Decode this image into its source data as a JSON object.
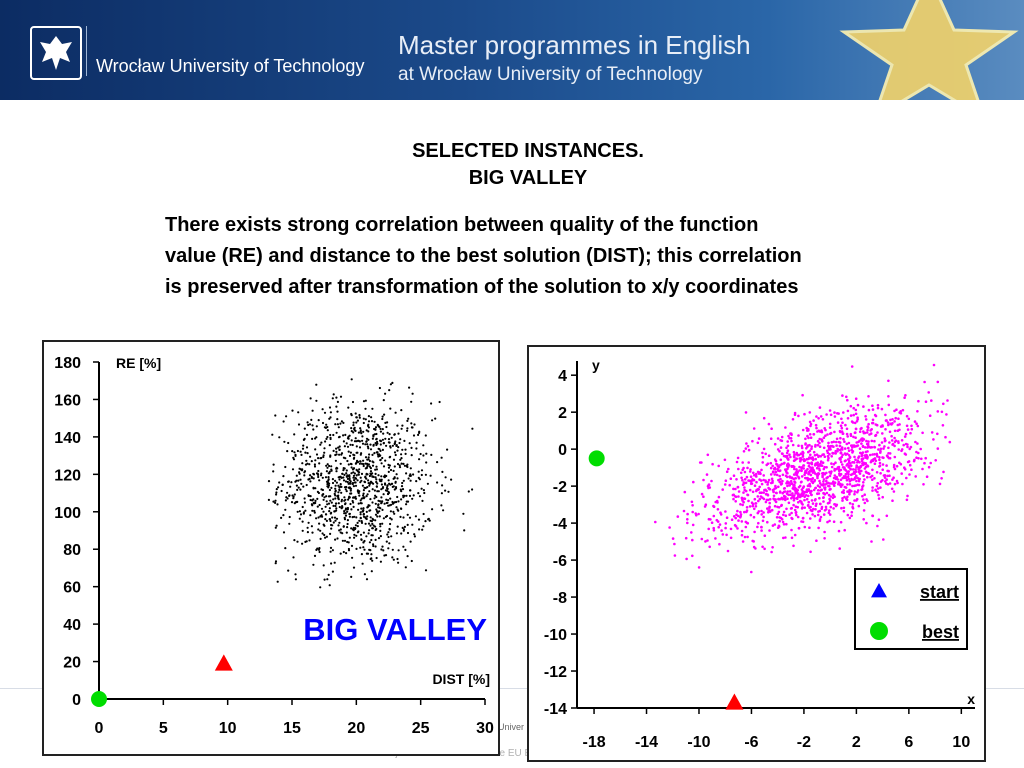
{
  "header": {
    "university": "Wrocław University of Technology",
    "programme_line1": "Master programmes in English",
    "programme_line2": "at Wrocław University of Technology"
  },
  "slide": {
    "title_line1": "SELECTED INSTANCES.",
    "title_line2": "BIG VALLEY",
    "description_line1": "There exists strong correlation between quality of the function",
    "description_line2": "value (RE) and distance to the best solution (DIST); this correlation",
    "description_line3": "is preserved after transformation of the solution to x/y coordinates"
  },
  "footer": {
    "text": "Project co-financed from the EU E",
    "fragment": "Univer"
  },
  "colors": {
    "left_points": "#000000",
    "right_points": "#ff00ff",
    "start": "#0000ff",
    "best": "#00dd00",
    "start_left": "#ff0000",
    "annotation": "#0000ff"
  },
  "chart_data": [
    {
      "type": "scatter",
      "xlabel": "DIST [%]",
      "ylabel": "RE [%]",
      "xlim": [
        0,
        30
      ],
      "ylim": [
        0,
        180
      ],
      "xticks": [
        0,
        5,
        10,
        15,
        20,
        25,
        30
      ],
      "yticks": [
        0,
        20,
        40,
        60,
        80,
        100,
        120,
        140,
        160,
        180
      ],
      "annotation": "BIG VALLEY",
      "cloud": {
        "center": [
          20,
          115
        ],
        "spread": [
          3.0,
          22.0
        ],
        "range_x": [
          13.2,
          29.5
        ],
        "range_y": [
          58,
          175
        ],
        "count": 1200
      },
      "markers": [
        {
          "label": "start",
          "shape": "triangle",
          "x": 9.7,
          "y": 19
        },
        {
          "label": "best",
          "shape": "circle",
          "x": 0,
          "y": 0
        }
      ]
    },
    {
      "type": "scatter",
      "xlabel": "x",
      "ylabel": "y",
      "xlim": [
        -19.3,
        11.5
      ],
      "ylim": [
        -14,
        5.2
      ],
      "xticks": [
        -18,
        -14,
        -10,
        -6,
        -2,
        2,
        6,
        10
      ],
      "yticks": [
        -14,
        -12,
        -10,
        -8,
        -6,
        -4,
        -2,
        0,
        2,
        4
      ],
      "cloud": {
        "center": [
          -1,
          -1.3
        ],
        "spread": [
          4.2,
          1.75
        ],
        "correlation": 0.55,
        "range_x": [
          -13.5,
          9.5
        ],
        "range_y": [
          -6.8,
          4.8
        ],
        "count": 1500
      },
      "legend": {
        "position": "bottom-right",
        "entries": [
          "start",
          "best"
        ]
      },
      "markers": [
        {
          "label": "start",
          "shape": "triangle",
          "x": -7.3,
          "y": -13.7
        },
        {
          "label": "best",
          "shape": "circle",
          "x": -17.8,
          "y": -0.5
        }
      ]
    }
  ]
}
